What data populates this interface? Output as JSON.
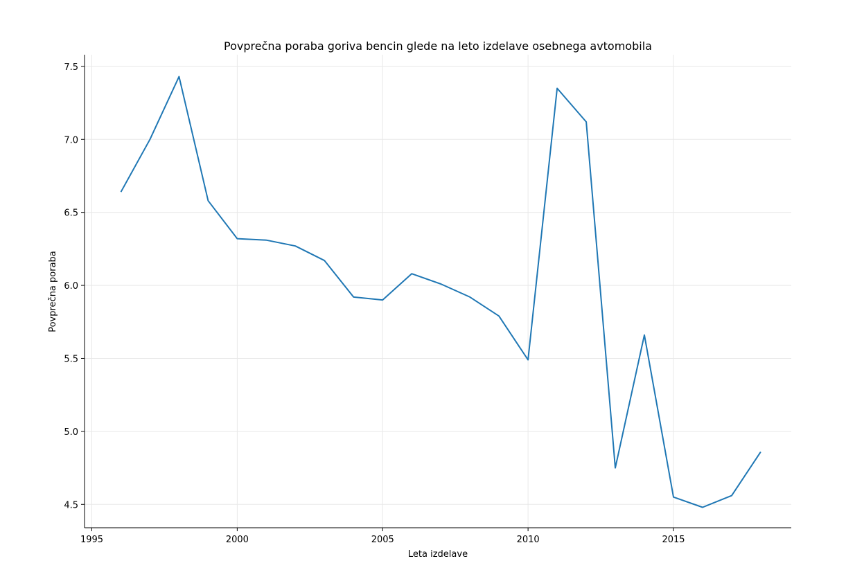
{
  "chart_data": {
    "type": "line",
    "title": "Povprečna poraba goriva bencin glede na leto izdelave osebnega avtomobila",
    "xlabel": "Leta izdelave",
    "ylabel": "Povprečna poraba",
    "xlim": [
      1994.75,
      2019.05
    ],
    "ylim": [
      4.34,
      7.58
    ],
    "xticks": [
      1995,
      2000,
      2005,
      2010,
      2015
    ],
    "yticks": [
      4.5,
      5.0,
      5.5,
      6.0,
      6.5,
      7.0,
      7.5
    ],
    "ytick_labels": [
      "4.5",
      "5.0",
      "5.5",
      "6.0",
      "6.5",
      "7.0",
      "7.5"
    ],
    "grid": true,
    "line_color": "#1f77b4",
    "series": [
      {
        "x": [
          1996,
          1997,
          1998,
          1999,
          2000,
          2001,
          2002,
          2003,
          2004,
          2005,
          2006,
          2007,
          2008,
          2009,
          2010,
          2011,
          2012,
          2013,
          2014,
          2015,
          2016,
          2017,
          2018
        ],
        "values": [
          6.64,
          7.0,
          7.43,
          6.58,
          6.32,
          6.31,
          6.27,
          6.17,
          5.92,
          5.9,
          6.08,
          6.01,
          5.92,
          5.79,
          5.49,
          7.35,
          7.12,
          4.75,
          5.66,
          4.55,
          4.48,
          4.56,
          4.86
        ]
      }
    ]
  }
}
